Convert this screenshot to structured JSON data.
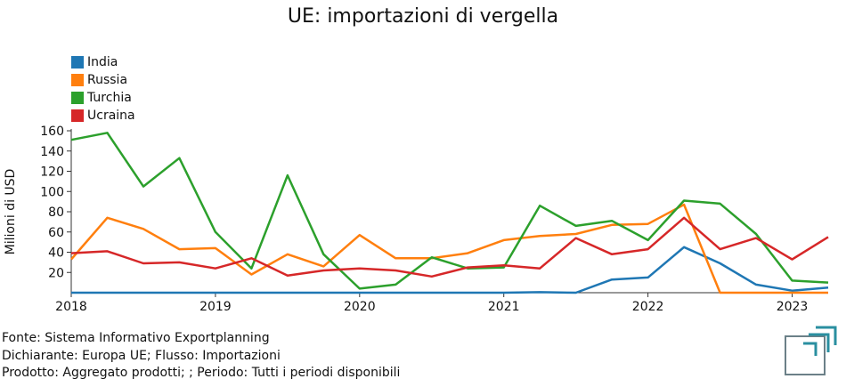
{
  "colors": {
    "India": "#1f77b4",
    "Russia": "#ff7f0e",
    "Turchia": "#2ca02c",
    "Ucraina": "#d62728",
    "logo": "#2a8fa0"
  },
  "footer": {
    "source": "Fonte: Sistema Informativo Exportplanning",
    "declarant": "Dichiarante: Europa UE; Flusso: Importazioni",
    "product": "Prodotto: Aggregato prodotti; ; Periodo: Tutti i periodi disponibili"
  },
  "chart_data": {
    "type": "line",
    "title": "UE: importazioni di vergella",
    "xlabel": "",
    "ylabel": "Milioni di USD",
    "ylim": [
      0,
      160
    ],
    "yticks": [
      20,
      40,
      60,
      80,
      100,
      120,
      140,
      160
    ],
    "xticks": [
      "2018",
      "2019",
      "2020",
      "2021",
      "2022",
      "2023"
    ],
    "x_year_range": [
      2018.0,
      2023.25
    ],
    "x": [
      2018.0,
      2018.25,
      2018.5,
      2018.75,
      2019.0,
      2019.25,
      2019.5,
      2019.75,
      2020.0,
      2020.25,
      2020.5,
      2020.75,
      2021.0,
      2021.25,
      2021.5,
      2021.75,
      2022.0,
      2022.25,
      2022.5,
      2022.75,
      2023.0,
      2023.25
    ],
    "series": [
      {
        "name": "India",
        "values": [
          0,
          0,
          0,
          0,
          0,
          0,
          0,
          0,
          0,
          0,
          0,
          0,
          0,
          0.5,
          0,
          13,
          15,
          45,
          29,
          8,
          2,
          5
        ]
      },
      {
        "name": "Russia",
        "values": [
          33,
          74,
          63,
          43,
          44,
          18,
          38,
          26,
          57,
          34,
          34,
          39,
          52,
          56,
          58,
          67,
          68,
          87,
          0,
          0,
          0,
          0
        ]
      },
      {
        "name": "Turchia",
        "values": [
          151,
          158,
          105,
          133,
          60,
          24,
          116,
          38,
          4,
          8,
          35,
          24,
          25,
          86,
          66,
          71,
          52,
          91,
          88,
          58,
          12,
          10
        ]
      },
      {
        "name": "Ucraina",
        "values": [
          39,
          41,
          29,
          30,
          24,
          34,
          17,
          22,
          24,
          22,
          16,
          25,
          27,
          24,
          54,
          38,
          43,
          74,
          43,
          54,
          33,
          55
        ]
      }
    ]
  }
}
